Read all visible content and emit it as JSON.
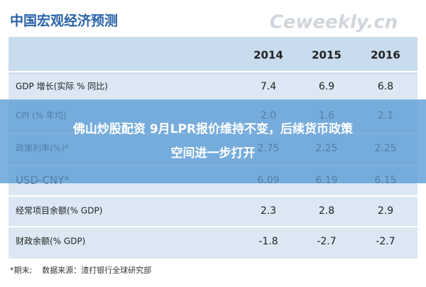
{
  "header": {
    "title": "中国宏观经济预测",
    "watermark": "Ceweekly.cn"
  },
  "table": {
    "columns": [
      "2014",
      "2015",
      "2016"
    ],
    "rows": [
      [
        "GDP 增长(实际 % 同比)",
        "7.4",
        "6.9",
        "6.8"
      ],
      [
        "CPI (% 年均)",
        "2.0",
        "1.6",
        "2.1"
      ],
      [
        "政策利率(%)*",
        "2.75",
        "2.25",
        "2.25"
      ],
      [
        "USD-CNY*",
        "6.09",
        "6.19",
        "6.15"
      ],
      [
        "经常项目余额(% GDP)",
        "2.3",
        "2.8",
        "2.9"
      ],
      [
        "财政余额(% GDP)",
        "-1.8",
        "-2.7",
        "-2.7"
      ]
    ]
  },
  "footnote": "*期末;    数据来源：渣打银行全球研究部",
  "banner": {
    "line1": "佛山炒股配资 9月LPR报价维持不变，后续货币政策",
    "line2": "空间进一步打开"
  }
}
